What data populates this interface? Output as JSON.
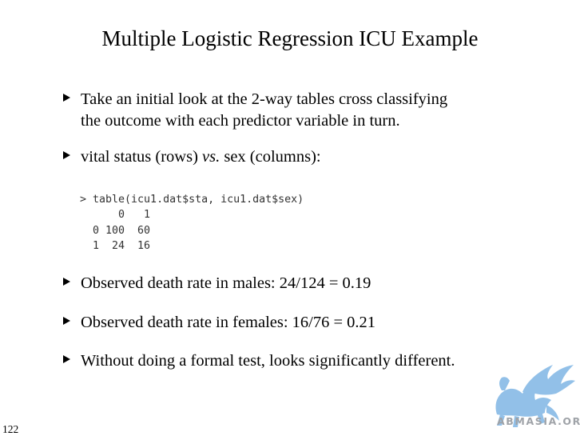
{
  "slide": {
    "title": "Multiple Logistic Regression ICU Example",
    "page_number": "122"
  },
  "bullets": [
    {
      "line1": "Take an initial look at the 2-way tables cross classifying",
      "line2": "the outcome with each predictor variable in turn."
    },
    {
      "before": "vital status (rows) ",
      "emphasis": "vs.",
      "after": " sex (columns):"
    },
    {
      "text": "Observed death rate in males: 24/124 = 0.19"
    },
    {
      "text": "Observed death rate in females: 16/76 = 0.21"
    },
    {
      "text": "Without doing a formal test, looks significantly different."
    }
  ],
  "code": {
    "command": "> table(icu1.dat$sta, icu1.dat$sex)",
    "header_row": "      0   1",
    "row_0": "  0 100  60",
    "row_1": "  1  24  16"
  },
  "watermark": {
    "text": "ABMASIA.ORG",
    "color": "#7fb6e4",
    "icon": "griffin-logo"
  },
  "colors": {
    "text": "#000000",
    "code": "#333333",
    "watermark_text": "#9fa3a8"
  }
}
